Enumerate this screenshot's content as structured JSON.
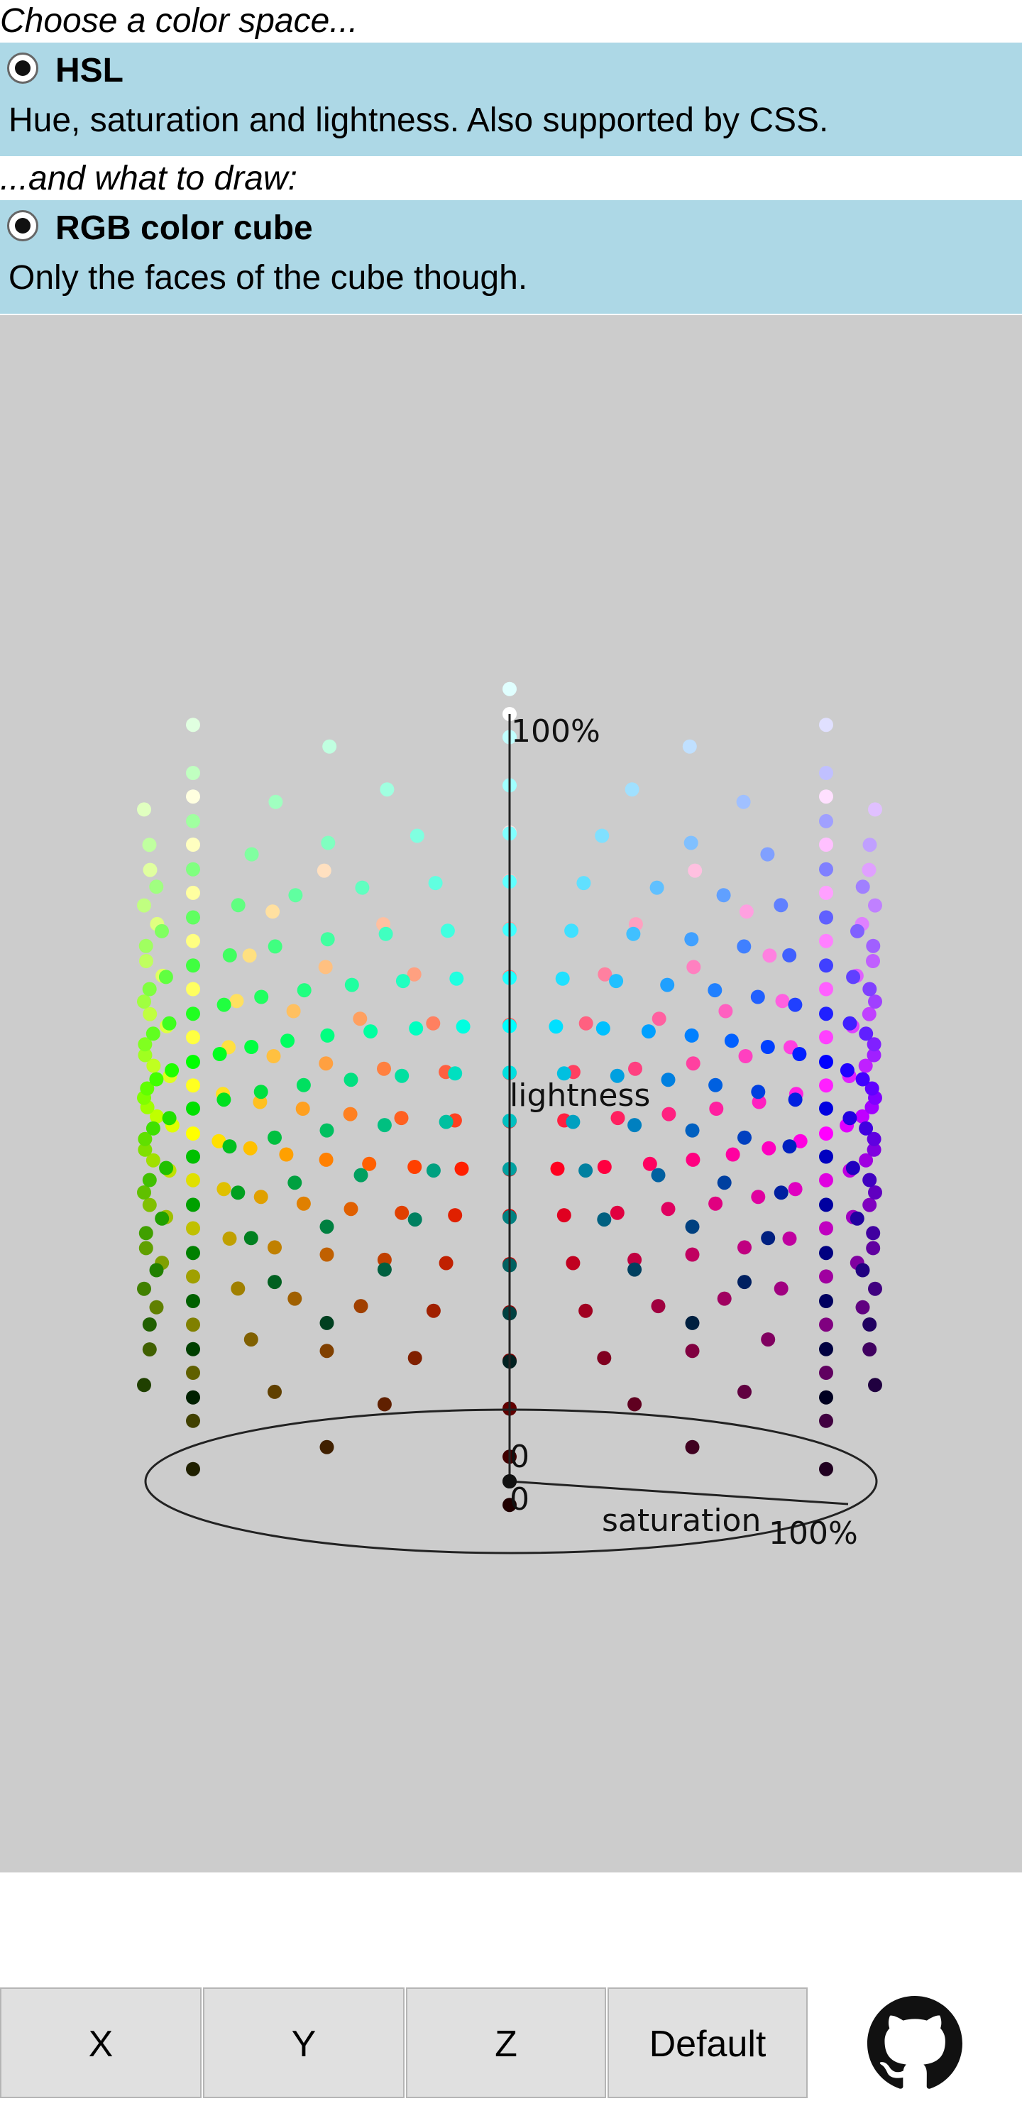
{
  "color_space_prompt": "Choose a color space...",
  "color_space_option": {
    "title": "HSL",
    "description": "Hue, saturation and lightness. Also supported by CSS.",
    "selected": true
  },
  "draw_prompt": "...and what to draw:",
  "draw_option": {
    "title": "RGB color cube",
    "description": "Only the faces of the cube though.",
    "selected": true
  },
  "plot": {
    "axis_lightness_label": "lightness",
    "axis_lightness_max": "100%",
    "axis_lightness_zero": "0",
    "axis_saturation_label": "saturation",
    "axis_saturation_max": "100%",
    "axis_saturation_zero": "0",
    "background_color": "#cccccc"
  },
  "toolbar": {
    "x_label": "X",
    "y_label": "Y",
    "z_label": "Z",
    "default_label": "Default"
  },
  "colors": {
    "option_background": "#add8e6",
    "button_background": "#e0e0e0"
  }
}
